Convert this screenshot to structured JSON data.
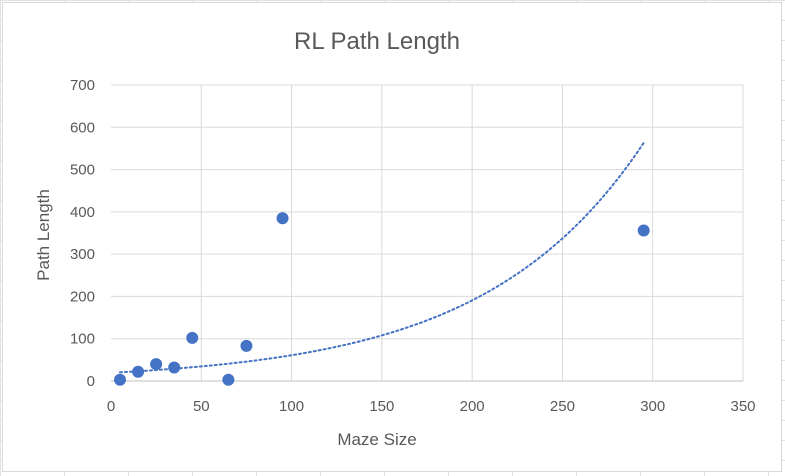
{
  "chart_data": {
    "type": "scatter",
    "title": "RL Path Length",
    "xlabel": "Maze Size",
    "ylabel": "Path Length",
    "xlim": [
      0,
      350
    ],
    "ylim": [
      0,
      700
    ],
    "x_ticks": [
      0,
      50,
      100,
      150,
      200,
      250,
      300,
      350
    ],
    "y_ticks": [
      0,
      100,
      200,
      300,
      400,
      500,
      600,
      700
    ],
    "grid": true,
    "legend": "none",
    "series": [
      {
        "type": "scatter",
        "color": "#4472c4",
        "points": [
          {
            "x": 5,
            "y": 3
          },
          {
            "x": 15,
            "y": 22
          },
          {
            "x": 25,
            "y": 40
          },
          {
            "x": 35,
            "y": 32
          },
          {
            "x": 45,
            "y": 102
          },
          {
            "x": 65,
            "y": 3
          },
          {
            "x": 75,
            "y": 83
          },
          {
            "x": 95,
            "y": 385
          },
          {
            "x": 295,
            "y": 356
          }
        ]
      }
    ],
    "trendline": {
      "type": "exponential",
      "style": "dotted",
      "color": "#4472c4",
      "x_range": [
        5,
        295
      ],
      "a": 19.5,
      "b": 0.0114
    }
  }
}
